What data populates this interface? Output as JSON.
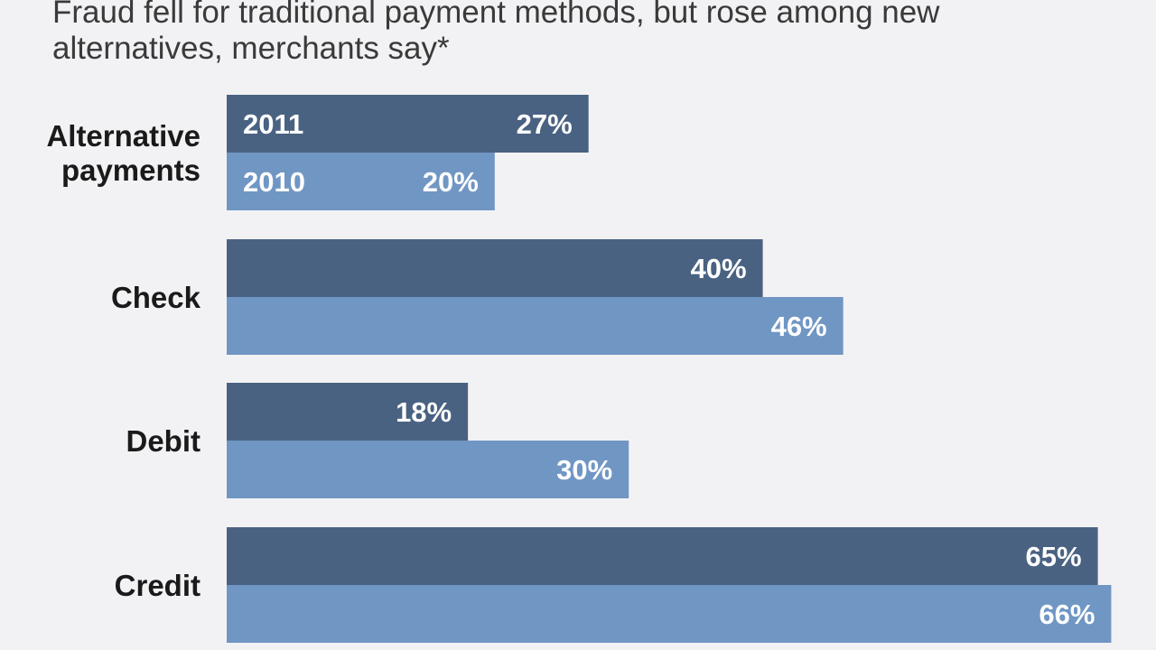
{
  "chart_data": {
    "type": "bar",
    "orientation": "horizontal",
    "subtitle": "Fraud fell for traditional payment methods, but rose among new alternatives, merchants say*",
    "title": "",
    "xlabel": "",
    "ylabel": "",
    "unit": "%",
    "xlim": [
      0,
      66
    ],
    "grid": false,
    "categories": [
      [
        "Alternative",
        "payments"
      ],
      [
        "Check"
      ],
      [
        "Debit"
      ],
      [
        "Credit"
      ]
    ],
    "series": [
      {
        "name": "2011",
        "color": "#4a6282",
        "values": [
          27,
          40,
          18,
          65
        ]
      },
      {
        "name": "2010",
        "color": "#7096c4",
        "values": [
          20,
          46,
          30,
          66
        ]
      }
    ]
  }
}
